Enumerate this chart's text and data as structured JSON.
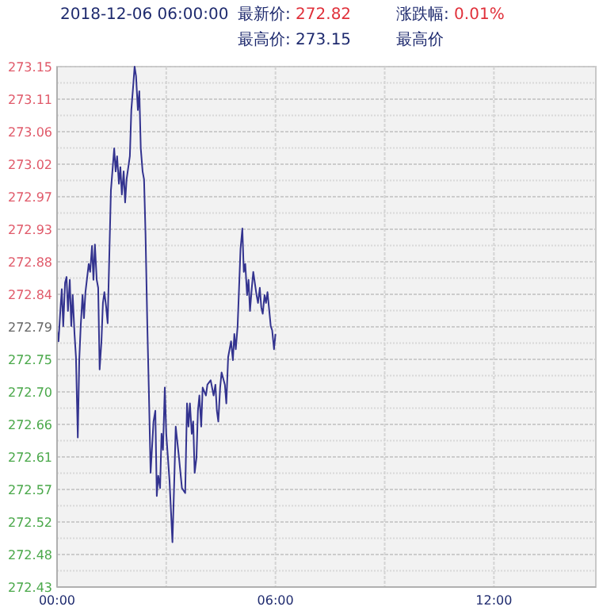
{
  "chart_data": {
    "type": "line",
    "annotations": [
      "2018-12-06 06:00:00",
      "最新价: 272.82",
      "涨跌幅: 0.01%",
      "最高价: 273.15",
      "最高价"
    ],
    "xlim": [
      0,
      14.8
    ],
    "xticks": [
      {
        "value": 0,
        "label": "00:00"
      },
      {
        "value": 3,
        "label": null
      },
      {
        "value": 6,
        "label": "06:00"
      },
      {
        "value": 9,
        "label": null
      },
      {
        "value": 12,
        "label": "12:00"
      }
    ],
    "ylim": [
      272.43,
      273.15
    ],
    "yticks": [
      {
        "value": 272.43,
        "label": "272.43"
      },
      {
        "value": 272.4525,
        "label": null
      },
      {
        "value": 272.475,
        "label": "272.48"
      },
      {
        "value": 272.4975,
        "label": null
      },
      {
        "value": 272.52,
        "label": "272.52"
      },
      {
        "value": 272.5425,
        "label": null
      },
      {
        "value": 272.565,
        "label": "272.57"
      },
      {
        "value": 272.5875,
        "label": null
      },
      {
        "value": 272.61,
        "label": "272.61"
      },
      {
        "value": 272.6325,
        "label": null
      },
      {
        "value": 272.655,
        "label": "272.66"
      },
      {
        "value": 272.6775,
        "label": null
      },
      {
        "value": 272.7,
        "label": "272.70"
      },
      {
        "value": 272.7225,
        "label": null
      },
      {
        "value": 272.745,
        "label": "272.75"
      },
      {
        "value": 272.7675,
        "label": null
      },
      {
        "value": 272.79,
        "label": "272.79"
      },
      {
        "value": 272.8125,
        "label": null
      },
      {
        "value": 272.835,
        "label": "272.84"
      },
      {
        "value": 272.8575,
        "label": null
      },
      {
        "value": 272.88,
        "label": "272.88"
      },
      {
        "value": 272.9025,
        "label": null
      },
      {
        "value": 272.925,
        "label": "272.93"
      },
      {
        "value": 272.9475,
        "label": null
      },
      {
        "value": 272.97,
        "label": "272.97"
      },
      {
        "value": 272.9925,
        "label": null
      },
      {
        "value": 273.015,
        "label": "273.02"
      },
      {
        "value": 273.0375,
        "label": null
      },
      {
        "value": 273.06,
        "label": "273.06"
      },
      {
        "value": 273.0825,
        "label": null
      },
      {
        "value": 273.105,
        "label": "273.11"
      },
      {
        "value": 273.1275,
        "label": null
      },
      {
        "value": 273.15,
        "label": "273.15"
      }
    ],
    "grid": true,
    "series": [
      {
        "color": "#33338f",
        "x": [
          0,
          0.04,
          0.09,
          0.13,
          0.17,
          0.22,
          0.26,
          0.3,
          0.35,
          0.39,
          0.43,
          0.48,
          0.52,
          0.57,
          0.61,
          0.65,
          0.7,
          0.74,
          0.78,
          0.87,
          0.91,
          0.96,
          1.0,
          1.04,
          1.09,
          1.13,
          1.17,
          1.22,
          1.26,
          1.3,
          1.35,
          1.39,
          1.43,
          1.48,
          1.57,
          1.61,
          1.65,
          1.7,
          1.74,
          1.78,
          1.83,
          1.87,
          1.91,
          2.0,
          2.04,
          2.09,
          2.13,
          2.17,
          2.22,
          2.26,
          2.3,
          2.35,
          2.39,
          2.43,
          2.48,
          2.52,
          2.57,
          2.65,
          2.7,
          2.74,
          2.78,
          2.83,
          2.87,
          2.91,
          2.96,
          3.0,
          3.09,
          3.13,
          3.17,
          3.22,
          3.26,
          3.35,
          3.43,
          3.52,
          3.57,
          3.61,
          3.65,
          3.7,
          3.74,
          3.78,
          3.83,
          3.87,
          3.91,
          3.96,
          4.0,
          4.09,
          4.13,
          4.22,
          4.3,
          4.35,
          4.39,
          4.43,
          4.48,
          4.52,
          4.61,
          4.65,
          4.7,
          4.78,
          4.83,
          4.87,
          4.91,
          4.96,
          5.0,
          5.04,
          5.09,
          5.13,
          5.17,
          5.22,
          5.26,
          5.3,
          5.35,
          5.39,
          5.48,
          5.52,
          5.57,
          5.61,
          5.65,
          5.7,
          5.74,
          5.78,
          5.83,
          5.87,
          5.91,
          5.96,
          6.0
        ],
        "values": [
          272.785,
          272.77,
          272.812,
          272.842,
          272.791,
          272.851,
          272.859,
          272.812,
          272.855,
          272.791,
          272.834,
          272.78,
          272.748,
          272.637,
          272.744,
          272.791,
          272.834,
          272.802,
          272.838,
          272.877,
          272.866,
          272.902,
          272.855,
          272.904,
          272.855,
          272.844,
          272.731,
          272.77,
          272.823,
          272.838,
          272.817,
          272.795,
          272.877,
          272.979,
          273.037,
          273.005,
          273.026,
          272.988,
          273.011,
          272.973,
          273.005,
          272.962,
          272.994,
          273.026,
          273.09,
          273.122,
          273.15,
          273.137,
          273.09,
          273.116,
          273.037,
          273.005,
          272.994,
          272.919,
          272.791,
          272.706,
          272.588,
          272.659,
          272.674,
          272.556,
          272.584,
          272.567,
          272.642,
          272.62,
          272.706,
          272.642,
          272.577,
          272.535,
          272.492,
          272.577,
          272.652,
          272.609,
          272.567,
          272.56,
          272.684,
          272.652,
          272.684,
          272.642,
          272.659,
          272.588,
          272.609,
          272.674,
          272.695,
          272.652,
          272.706,
          272.695,
          272.71,
          272.716,
          272.695,
          272.71,
          272.674,
          272.659,
          272.706,
          272.727,
          272.71,
          272.684,
          272.748,
          272.77,
          272.744,
          272.78,
          272.759,
          272.791,
          272.844,
          272.898,
          272.926,
          272.866,
          272.877,
          272.834,
          272.855,
          272.812,
          272.844,
          272.866,
          272.834,
          272.823,
          272.844,
          272.817,
          272.808,
          272.834,
          272.823,
          272.838,
          272.812,
          272.791,
          272.785,
          272.759,
          272.78
        ]
      }
    ]
  }
}
